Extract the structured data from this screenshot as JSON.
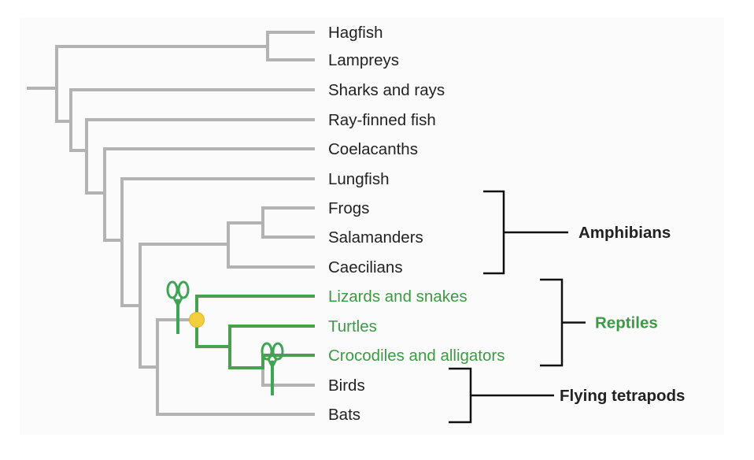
{
  "colors": {
    "gray_branch": "#b3b3b3",
    "green_branch": "#4aa04f",
    "green_text": "#3c9a44",
    "node_marker": "#f3cf3e",
    "bracket": "#111111",
    "text": "#222222",
    "scissors": "#3fa455"
  },
  "taxa": [
    {
      "label": "Hagfish",
      "highlight": false
    },
    {
      "label": "Lampreys",
      "highlight": false
    },
    {
      "label": "Sharks and rays",
      "highlight": false
    },
    {
      "label": "Ray-finned fish",
      "highlight": false
    },
    {
      "label": "Coelacanths",
      "highlight": false
    },
    {
      "label": "Lungfish",
      "highlight": false
    },
    {
      "label": "Frogs",
      "highlight": false
    },
    {
      "label": "Salamanders",
      "highlight": false
    },
    {
      "label": "Caecilians",
      "highlight": false
    },
    {
      "label": "Lizards and snakes",
      "highlight": true
    },
    {
      "label": "Turtles",
      "highlight": true
    },
    {
      "label": "Crocodiles and alligators",
      "highlight": true
    },
    {
      "label": "Birds",
      "highlight": false
    },
    {
      "label": "Bats",
      "highlight": false
    }
  ],
  "groups": [
    {
      "label": "Amphibians",
      "highlight": false
    },
    {
      "label": "Reptiles",
      "highlight": true
    },
    {
      "label": "Flying tetrapods",
      "highlight": false
    }
  ],
  "icons": [
    "scissors-icon",
    "scissors-icon",
    "node-marker"
  ]
}
